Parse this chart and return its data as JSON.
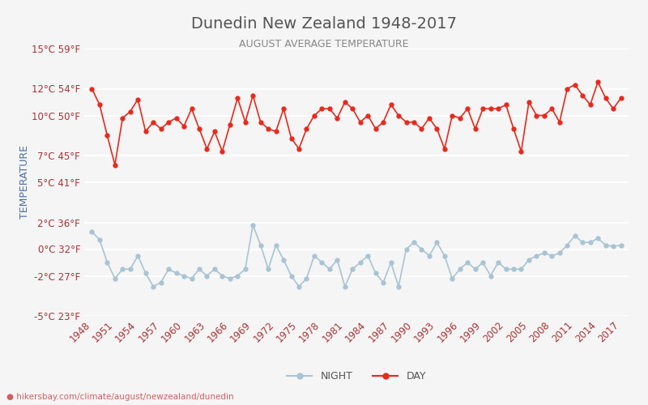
{
  "title": "Dunedin New Zealand 1948-2017",
  "subtitle": "AUGUST AVERAGE TEMPERATURE",
  "ylabel": "TEMPERATURE",
  "watermark": "hikersbay.com/climate/august/newzealand/dunedin",
  "years": [
    1948,
    1949,
    1950,
    1951,
    1952,
    1953,
    1954,
    1955,
    1956,
    1957,
    1958,
    1959,
    1960,
    1961,
    1962,
    1963,
    1964,
    1965,
    1966,
    1967,
    1968,
    1969,
    1970,
    1971,
    1972,
    1973,
    1974,
    1975,
    1976,
    1977,
    1978,
    1979,
    1980,
    1981,
    1982,
    1983,
    1984,
    1985,
    1986,
    1987,
    1988,
    1989,
    1990,
    1991,
    1992,
    1993,
    1994,
    1995,
    1996,
    1997,
    1998,
    1999,
    2000,
    2001,
    2002,
    2003,
    2004,
    2005,
    2006,
    2007,
    2008,
    2009,
    2010,
    2011,
    2012,
    2013,
    2014,
    2015,
    2016,
    2017
  ],
  "day_temps": [
    12.0,
    10.8,
    8.5,
    6.3,
    9.8,
    10.3,
    11.2,
    8.8,
    9.5,
    9.0,
    9.5,
    9.8,
    9.2,
    10.5,
    9.0,
    7.5,
    8.8,
    7.3,
    9.3,
    11.3,
    9.5,
    11.5,
    9.5,
    9.0,
    8.8,
    10.5,
    8.3,
    7.5,
    9.0,
    10.0,
    10.5,
    10.5,
    9.8,
    11.0,
    10.5,
    9.5,
    10.0,
    9.0,
    9.5,
    10.8,
    10.0,
    9.5,
    9.5,
    9.0,
    9.8,
    9.0,
    7.5,
    10.0,
    9.8,
    10.5,
    9.0,
    10.5,
    10.5,
    10.5,
    10.8,
    9.0,
    7.3,
    11.0,
    10.0,
    10.0,
    10.5,
    9.5,
    12.0,
    12.3,
    11.5,
    10.8,
    12.5,
    11.3,
    10.5,
    11.3
  ],
  "night_temps": [
    1.3,
    0.7,
    -1.0,
    -2.2,
    -1.5,
    -1.5,
    -0.5,
    -1.8,
    -2.8,
    -2.5,
    -1.5,
    -1.8,
    -2.0,
    -2.2,
    -1.5,
    -2.0,
    -1.5,
    -2.0,
    -2.2,
    -2.0,
    -1.5,
    1.8,
    0.3,
    -1.5,
    0.3,
    -0.8,
    -2.0,
    -2.8,
    -2.2,
    -0.5,
    -1.0,
    -1.5,
    -0.8,
    -2.8,
    -1.5,
    -1.0,
    -0.5,
    -1.8,
    -2.5,
    -1.0,
    -2.8,
    0.0,
    0.5,
    0.0,
    -0.5,
    0.5,
    -0.5,
    -2.2,
    -1.5,
    -1.0,
    -1.5,
    -1.0,
    -2.0,
    -1.0,
    -1.5,
    -1.5,
    -1.5,
    -0.8,
    -0.5,
    -0.3,
    -0.5,
    -0.3,
    0.3,
    1.0,
    0.5,
    0.5,
    0.8,
    0.3,
    0.2,
    0.3
  ],
  "ylim_min": -5,
  "ylim_max": 15,
  "yticks_c": [
    -5,
    -2,
    0,
    2,
    5,
    7,
    10,
    12,
    15
  ],
  "yticks_f": [
    23,
    27,
    32,
    36,
    41,
    45,
    50,
    54,
    59
  ],
  "day_color": "#e8291c",
  "night_color": "#a8c4d4",
  "bg_color": "#f5f5f5",
  "grid_color": "#ffffff",
  "title_color": "#555555",
  "subtitle_color": "#888888",
  "ylabel_color": "#4a6fa5",
  "tick_color": "#aa3333",
  "watermark_color": "#cc4444"
}
